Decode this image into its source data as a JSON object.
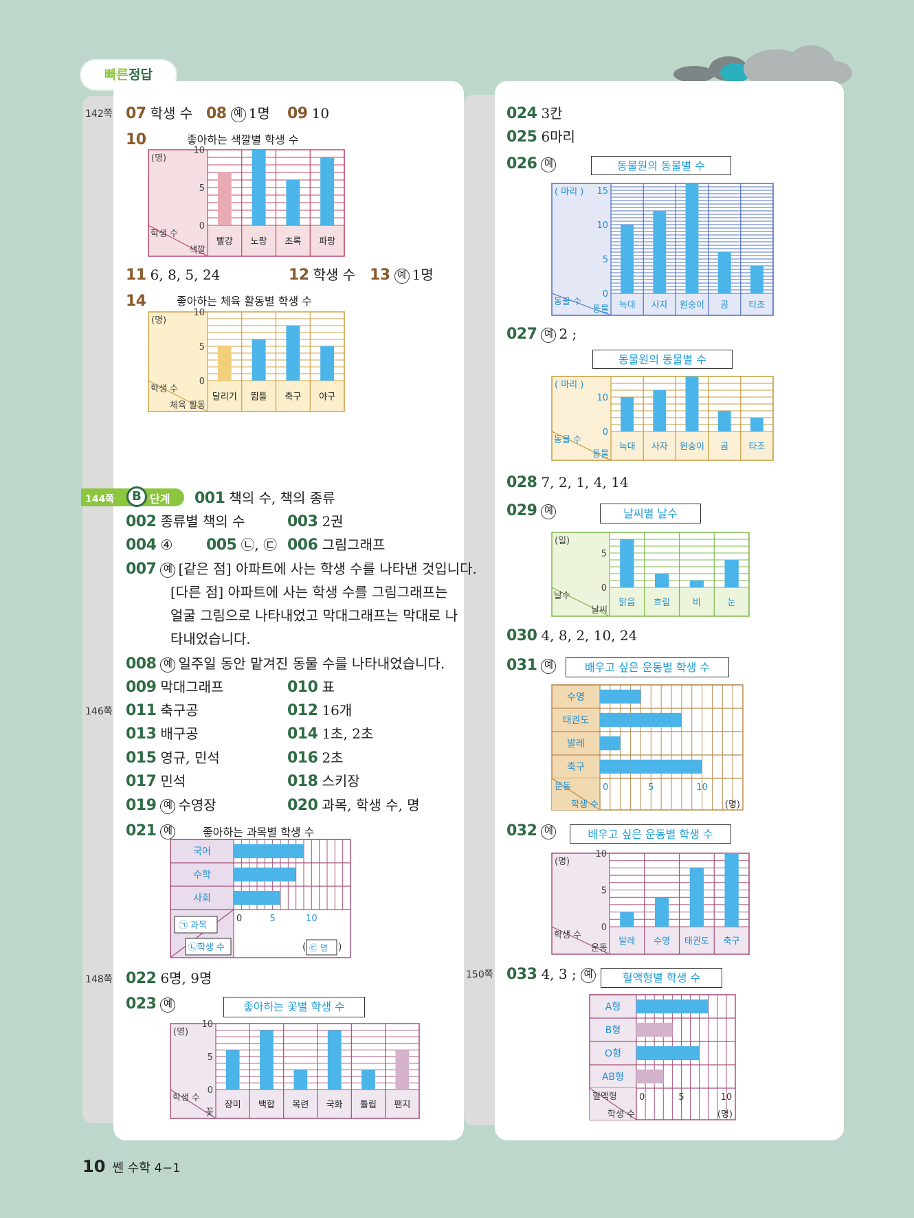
{
  "header": {
    "badge_label_1": "빠른",
    "badge_label_2": "정답",
    "footer_page": "10",
    "footer_book": "쎈 수학 4−1"
  },
  "pages": {
    "p142": "142쪽",
    "p144": "144쪽",
    "p146": "146쪽",
    "p148": "148쪽",
    "p150": "150쪽"
  },
  "b_stage": {
    "letter": "B",
    "label": "단계"
  },
  "ye": "예",
  "left": {
    "q07": {
      "num": "07",
      "text": "학생 수"
    },
    "q08": {
      "num": "08",
      "text": "1명"
    },
    "q09": {
      "num": "09",
      "text": "10"
    },
    "q10": {
      "num": "10"
    },
    "q11": {
      "num": "11",
      "text": "6, 8, 5, 24"
    },
    "q12": {
      "num": "12",
      "text": "학생 수"
    },
    "q13": {
      "num": "13",
      "text": "1명"
    },
    "q14": {
      "num": "14"
    },
    "q001": {
      "num": "001",
      "text": "책의 수, 책의 종류"
    },
    "q002": {
      "num": "002",
      "text": "종류별 책의 수"
    },
    "q003": {
      "num": "003",
      "text": "2권"
    },
    "q004": {
      "num": "004",
      "text": "④"
    },
    "q005": {
      "num": "005",
      "text": "㉡, ㉢"
    },
    "q006": {
      "num": "006",
      "text": "그림그래프"
    },
    "q007": {
      "num": "007",
      "lines": [
        "[같은 점] 아파트에 사는 학생 수를 나타낸 것입니다.",
        "[다른 점] 아파트에 사는 학생 수를 그림그래프는",
        "얼굴 그림으로 나타내었고 막대그래프는 막대로 나",
        "타내었습니다."
      ]
    },
    "q008": {
      "num": "008",
      "text": "일주일 동안 맡겨진 동물 수를 나타내었습니다."
    },
    "q009": {
      "num": "009",
      "text": "막대그래프"
    },
    "q010": {
      "num": "010",
      "text": "표"
    },
    "q011": {
      "num": "011",
      "text": "축구공"
    },
    "q012": {
      "num": "012",
      "text": "16개"
    },
    "q013": {
      "num": "013",
      "text": "배구공"
    },
    "q014": {
      "num": "014",
      "text": "1초, 2초"
    },
    "q015": {
      "num": "015",
      "text": "영규, 민석"
    },
    "q016": {
      "num": "016",
      "text": "2초"
    },
    "q017": {
      "num": "017",
      "text": "민석"
    },
    "q018": {
      "num": "018",
      "text": "스키장"
    },
    "q019": {
      "num": "019",
      "text": "수영장"
    },
    "q020": {
      "num": "020",
      "text": "과목, 학생 수, 명"
    },
    "q021": {
      "num": "021"
    },
    "q022": {
      "num": "022",
      "text": "6명, 9명"
    },
    "q023": {
      "num": "023"
    }
  },
  "right": {
    "q024": {
      "num": "024",
      "text": "3칸"
    },
    "q025": {
      "num": "025",
      "text": "6마리"
    },
    "q026": {
      "num": "026"
    },
    "q027": {
      "num": "027",
      "text": "2 ;"
    },
    "q028": {
      "num": "028",
      "text": "7, 2, 1, 4, 14"
    },
    "q029": {
      "num": "029"
    },
    "q030": {
      "num": "030",
      "text": "4, 8, 2, 10, 24"
    },
    "q031": {
      "num": "031"
    },
    "q032": {
      "num": "032"
    },
    "q033": {
      "num": "033",
      "text": "4, 3 ;"
    }
  },
  "colors": {
    "blue_bar": "#4bb4e8",
    "pink_bar": "#e8aab4",
    "tan_bar": "#f2cf7a",
    "mauve_bar": "#d4b2cc"
  },
  "chart_data": [
    {
      "id": "c10",
      "type": "bar",
      "title": "좋아하는 색깔별 학생 수",
      "unit": "(명)",
      "row_label": "학생 수",
      "col_label": "색깔",
      "categories": [
        "빨강",
        "노랑",
        "초록",
        "파랑"
      ],
      "values": [
        7,
        10,
        6,
        9
      ],
      "highlight": [
        0
      ],
      "ylim": [
        0,
        10
      ],
      "ticks": [
        "0",
        "5",
        "10"
      ]
    },
    {
      "id": "c14",
      "type": "bar",
      "title": "좋아하는 체육 활동별 학생 수",
      "unit": "(명)",
      "row_label": "학생 수",
      "col_label": "체육 활동",
      "categories": [
        "달리기",
        "뜀틀",
        "축구",
        "야구"
      ],
      "values": [
        5,
        6,
        8,
        5
      ],
      "highlight": [
        0
      ],
      "ylim": [
        0,
        10
      ],
      "ticks": [
        "0",
        "5",
        "10"
      ]
    },
    {
      "id": "c021",
      "type": "bar",
      "orientation": "horizontal",
      "title": "좋아하는 과목별 학생 수",
      "categories": [
        "국어",
        "수학",
        "사회"
      ],
      "values": [
        9,
        8,
        6
      ],
      "xlim": [
        0,
        15
      ],
      "ticks": [
        "0",
        "5",
        "10"
      ],
      "label_a": "㉠ 과목",
      "label_b": "㉡학생 수",
      "label_c": "㉢ 명"
    },
    {
      "id": "c023",
      "type": "bar",
      "title": "좋아하는 꽃별 학생 수",
      "unit": "(명)",
      "row_label": "학생 수",
      "col_label": "꽃",
      "categories": [
        "장미",
        "백합",
        "목련",
        "국화",
        "튤립",
        "팬지"
      ],
      "values": [
        6,
        9,
        3,
        9,
        3,
        6
      ],
      "highlight": [
        5
      ],
      "ylim": [
        0,
        10
      ],
      "ticks": [
        "0",
        "5",
        "10"
      ]
    },
    {
      "id": "c026",
      "type": "bar",
      "title": "동물원의 동물별 수",
      "unit": "( 마리 )",
      "row_label": "동물 수",
      "col_label": "동물",
      "categories": [
        "늑대",
        "사자",
        "원숭이",
        "곰",
        "타조"
      ],
      "values": [
        10,
        12,
        16,
        6,
        4
      ],
      "ylim": [
        0,
        16
      ],
      "ticks": [
        "0",
        "5",
        "10",
        "15"
      ]
    },
    {
      "id": "c027",
      "type": "bar",
      "title": "동물원의 동물별 수",
      "unit": "( 마리 )",
      "row_label": "동물 수",
      "col_label": "동물",
      "categories": [
        "늑대",
        "사자",
        "원숭이",
        "곰",
        "타조"
      ],
      "values": [
        10,
        12,
        16,
        6,
        4
      ],
      "ylim": [
        0,
        16
      ],
      "scale": 2,
      "ticks": [
        "0",
        "10"
      ]
    },
    {
      "id": "c029",
      "type": "bar",
      "title": "날씨별 날수",
      "unit": "(일)",
      "row_label": "날수",
      "col_label": "날씨",
      "categories": [
        "맑음",
        "흐림",
        "비",
        "눈"
      ],
      "values": [
        7,
        2,
        1,
        4
      ],
      "ylim": [
        0,
        8
      ],
      "ticks": [
        "0",
        "5"
      ]
    },
    {
      "id": "c031",
      "type": "bar",
      "orientation": "horizontal",
      "title": "배우고 싶은 운동별 학생 수",
      "unit": "(명)",
      "row_label": "운동",
      "col_label": "학생 수",
      "categories": [
        "수영",
        "태권도",
        "발레",
        "축구"
      ],
      "values": [
        4,
        8,
        2,
        10
      ],
      "xlim": [
        0,
        14
      ],
      "ticks": [
        "0",
        "5",
        "10"
      ]
    },
    {
      "id": "c032",
      "type": "bar",
      "title": "배우고 싶은 운동별 학생 수",
      "unit": "(명)",
      "row_label": "학생 수",
      "col_label": "운동",
      "categories": [
        "발레",
        "수영",
        "태권도",
        "축구"
      ],
      "values": [
        2,
        4,
        8,
        10
      ],
      "ylim": [
        0,
        10
      ],
      "ticks": [
        "0",
        "5",
        "10"
      ]
    },
    {
      "id": "c033",
      "type": "bar",
      "orientation": "horizontal",
      "title": "혈액형별 학생 수",
      "unit": "(명)",
      "row_label": "혈액형",
      "col_label": "학생 수",
      "categories": [
        "A형",
        "B형",
        "O형",
        "AB형"
      ],
      "values": [
        8,
        4,
        7,
        3
      ],
      "highlight": [
        1,
        3
      ],
      "xlim": [
        0,
        11
      ],
      "ticks": [
        "0",
        "5",
        "10"
      ]
    }
  ]
}
